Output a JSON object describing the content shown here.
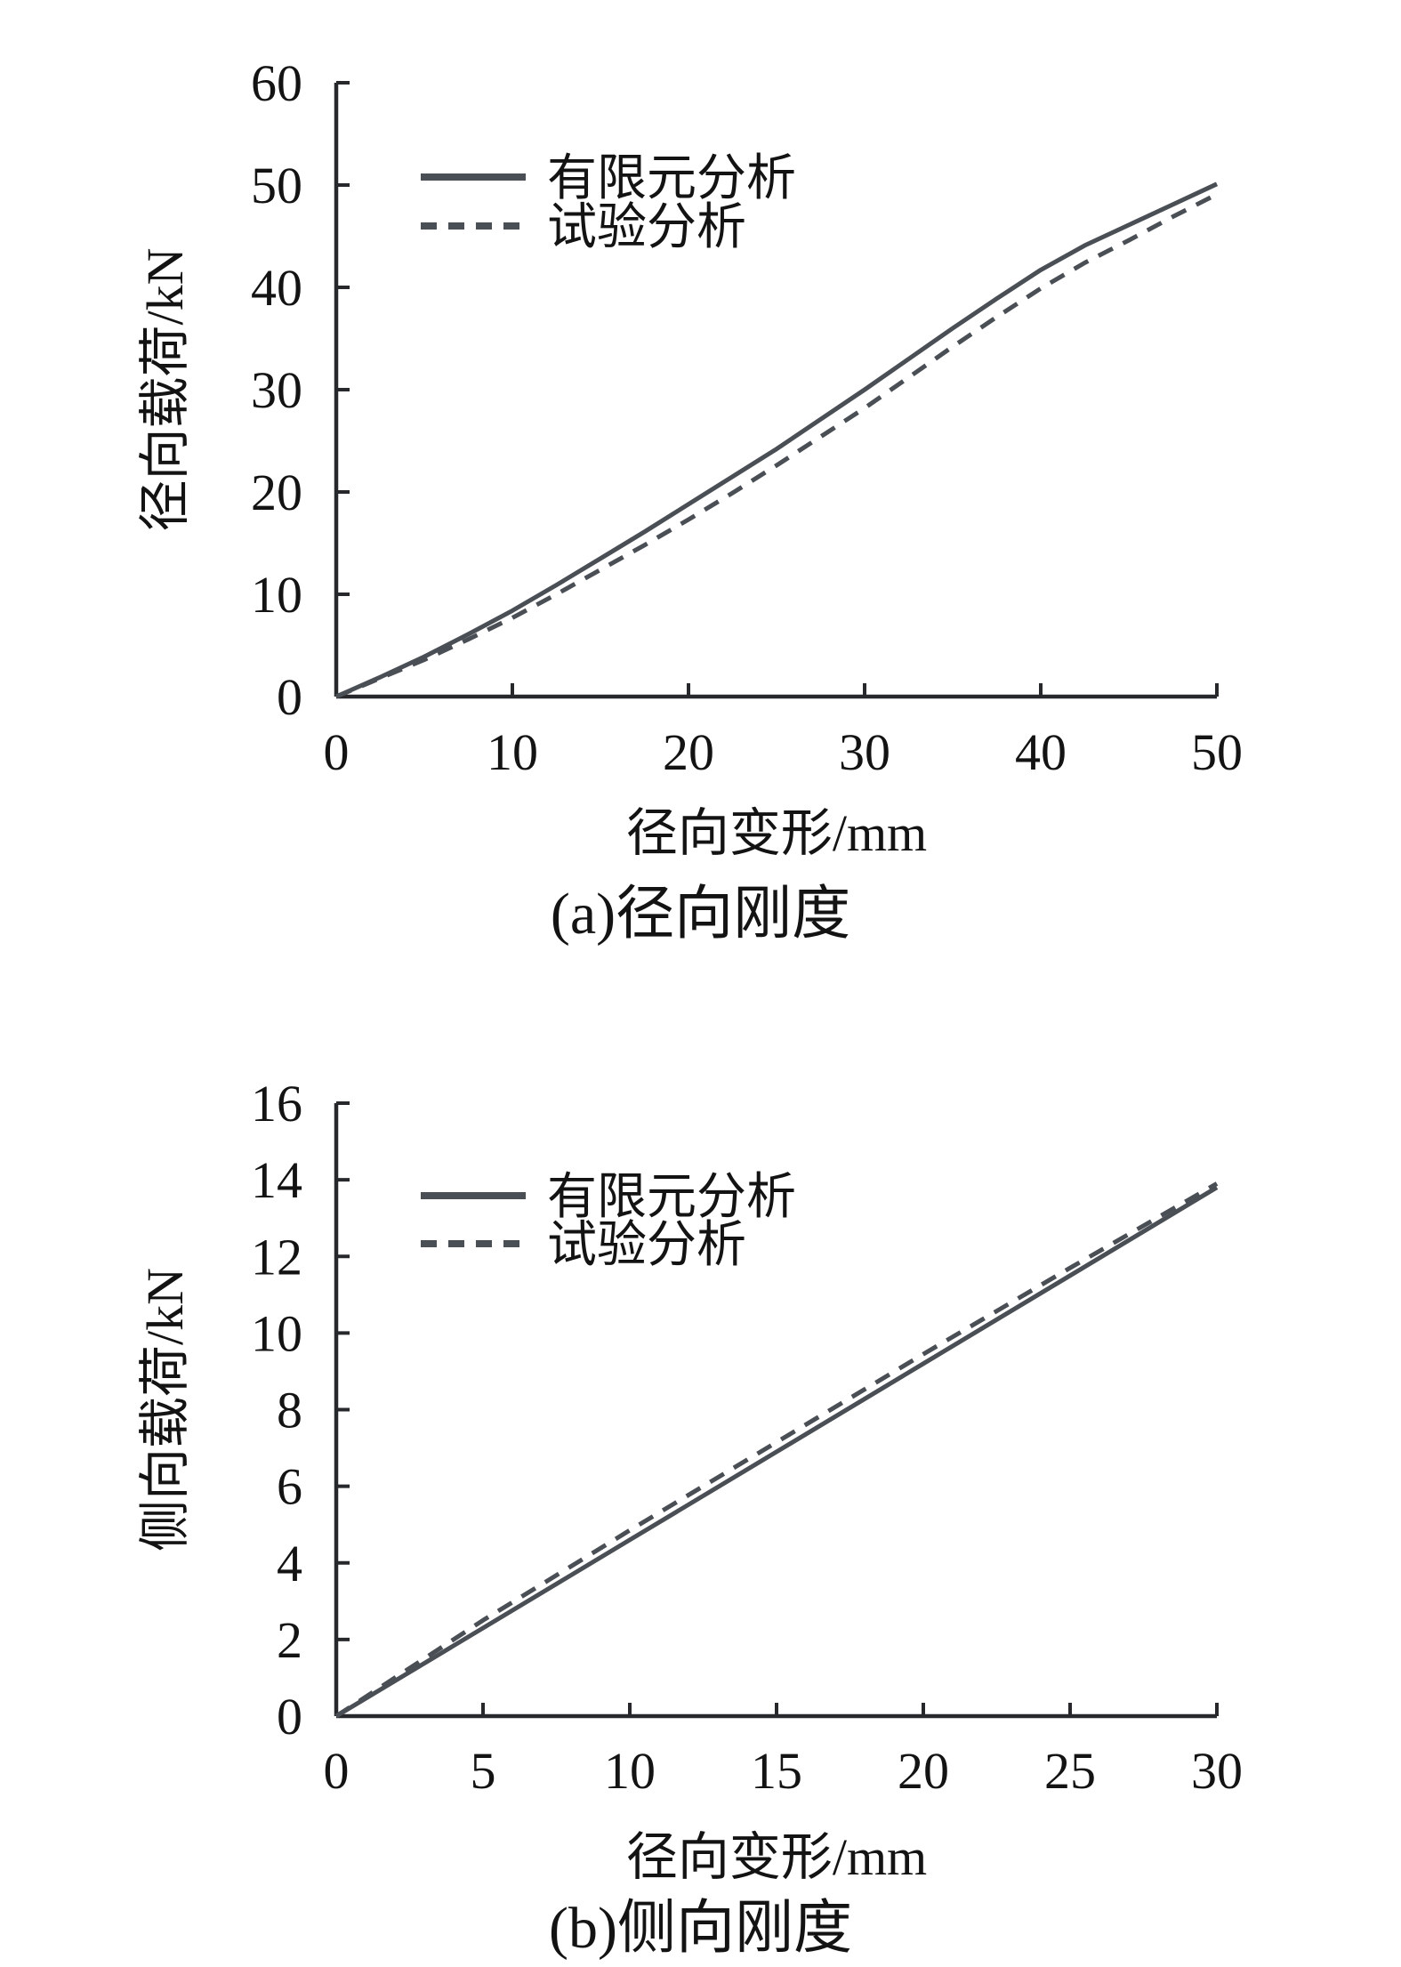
{
  "page": {
    "background": "#ffffff"
  },
  "colors": {
    "curve": "#4a4e55",
    "axis": "#27282b",
    "text": "#131313",
    "background": "#ffffff"
  },
  "legend": {
    "solid_label": "有限元分析",
    "dashed_label": "试验分析"
  },
  "chart_data": [
    {
      "id": "a",
      "type": "line",
      "title": "(a)径向刚度",
      "xlabel": "径向变形/mm",
      "ylabel": "径向载荷/kN",
      "xlim": [
        0,
        50
      ],
      "ylim": [
        0,
        60
      ],
      "xticks": [
        0,
        10,
        20,
        30,
        40,
        50
      ],
      "yticks": [
        0,
        10,
        20,
        30,
        40,
        50,
        60
      ],
      "grid": false,
      "legend_position": "top-left-inside",
      "series": [
        {
          "name": "有限元分析",
          "style": "solid",
          "points": [
            [
              0,
              0
            ],
            [
              2.5,
              1.9
            ],
            [
              5,
              3.9
            ],
            [
              7.5,
              6.1
            ],
            [
              10,
              8.4
            ],
            [
              12.5,
              10.9
            ],
            [
              15,
              13.5
            ],
            [
              17.5,
              16.1
            ],
            [
              20,
              18.8
            ],
            [
              22.5,
              21.5
            ],
            [
              25,
              24.2
            ],
            [
              27.5,
              27.1
            ],
            [
              30,
              30.0
            ],
            [
              32.5,
              33.0
            ],
            [
              35,
              36.0
            ],
            [
              37.5,
              38.9
            ],
            [
              40,
              41.7
            ],
            [
              42.5,
              44.1
            ],
            [
              45,
              46.1
            ],
            [
              47.5,
              48.1
            ],
            [
              50,
              50.1
            ]
          ]
        },
        {
          "name": "试验分析",
          "style": "dashed",
          "points": [
            [
              0,
              0
            ],
            [
              2.5,
              1.8
            ],
            [
              5,
              3.6
            ],
            [
              7.5,
              5.6
            ],
            [
              10,
              7.7
            ],
            [
              12.5,
              10.0
            ],
            [
              15,
              12.4
            ],
            [
              17.5,
              14.8
            ],
            [
              20,
              17.3
            ],
            [
              22.5,
              19.9
            ],
            [
              25,
              22.6
            ],
            [
              27.5,
              25.4
            ],
            [
              30,
              28.2
            ],
            [
              32.5,
              31.2
            ],
            [
              35,
              34.2
            ],
            [
              37.5,
              37.1
            ],
            [
              40,
              39.9
            ],
            [
              42.5,
              42.4
            ],
            [
              45,
              44.6
            ],
            [
              47.5,
              46.9
            ],
            [
              50,
              49.1
            ]
          ]
        }
      ]
    },
    {
      "id": "b",
      "type": "line",
      "title": "(b)侧向刚度",
      "xlabel": "径向变形/mm",
      "ylabel": "侧向载荷/kN",
      "xlim": [
        0,
        30
      ],
      "ylim": [
        0,
        16
      ],
      "xticks": [
        0,
        5,
        10,
        15,
        20,
        25,
        30
      ],
      "yticks": [
        0,
        2,
        4,
        6,
        8,
        10,
        12,
        14,
        16
      ],
      "grid": false,
      "legend_position": "top-left-inside",
      "series": [
        {
          "name": "有限元分析",
          "style": "solid",
          "points": [
            [
              0,
              0
            ],
            [
              5,
              2.3
            ],
            [
              10,
              4.6
            ],
            [
              15,
              6.9
            ],
            [
              20,
              9.2
            ],
            [
              25,
              11.5
            ],
            [
              30,
              13.8
            ]
          ]
        },
        {
          "name": "试验分析",
          "style": "dashed",
          "points": [
            [
              0,
              0
            ],
            [
              2,
              1.0
            ],
            [
              5,
              2.5
            ],
            [
              10,
              4.85
            ],
            [
              15,
              7.15
            ],
            [
              20,
              9.45
            ],
            [
              25,
              11.7
            ],
            [
              30,
              13.9
            ]
          ]
        }
      ]
    }
  ]
}
